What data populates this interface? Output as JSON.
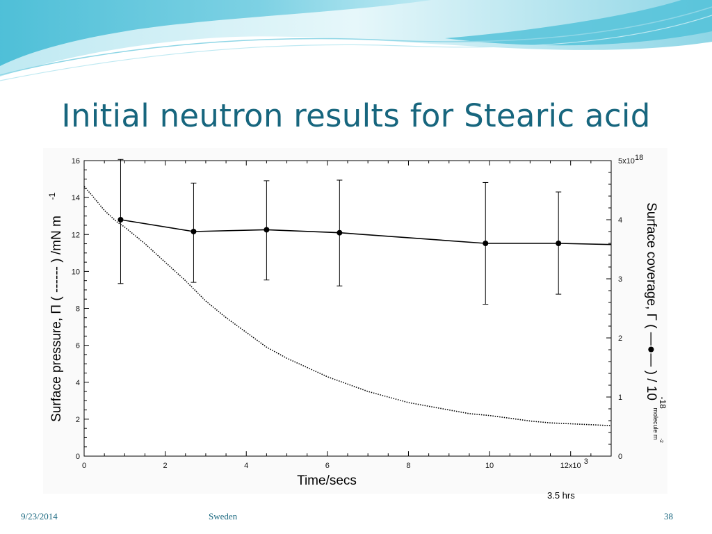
{
  "slide": {
    "title": "Initial neutron results for Stearic acid",
    "footer_date": "9/23/2014",
    "footer_center": "Sweden",
    "page_number": "38",
    "note": "3.5 hrs"
  },
  "colors": {
    "title": "#17667e",
    "banner_light": "#d8f1f6",
    "banner_mid": "#8fd6e6",
    "banner_dark": "#3bb8d3",
    "series": "#000000"
  },
  "chart_data": {
    "type": "line",
    "xlabel": "Time/secs",
    "x_multiplier_label": "12x10",
    "x_multiplier_exp": "3",
    "x_ticks": [
      0,
      2000,
      4000,
      6000,
      8000,
      10000,
      12000
    ],
    "x_tick_labels": [
      "0",
      "2",
      "4",
      "6",
      "8",
      "10",
      ""
    ],
    "xlim": [
      0,
      13000
    ],
    "ylabel_left": "Surface pressure, Π ( ------ ) /mN m",
    "ylabel_left_exp": "-1",
    "ylim_left": [
      0,
      16
    ],
    "y_ticks_left": [
      0,
      2,
      4,
      6,
      8,
      10,
      12,
      14,
      16
    ],
    "y_tick_labels_left": [
      "0",
      "2",
      "4",
      "6",
      "8",
      "10",
      "12",
      "14",
      "16"
    ],
    "ylabel_right": "Surface coverage, Γ  ( —●— ) / 10",
    "ylabel_right_exp": "-18",
    "ylabel_right_unit": "molecule m",
    "ylabel_right_unit_exp": "-2",
    "ylim_right": [
      0,
      5
    ],
    "y_ticks_right": [
      0,
      1,
      2,
      3,
      4,
      5
    ],
    "y_tick_labels_right": [
      "0",
      "1",
      "2",
      "3",
      "4",
      ""
    ],
    "y_right_top_label": "5x10",
    "y_right_top_exp": "18",
    "series": [
      {
        "style": "dotted",
        "axis": "left",
        "x": [
          0,
          200,
          500,
          800,
          1000,
          1500,
          2000,
          2500,
          3000,
          3500,
          4000,
          4500,
          5000,
          5500,
          6000,
          6500,
          7000,
          7500,
          8000,
          8500,
          9000,
          9500,
          10000,
          10500,
          11000,
          11500,
          12000,
          12500,
          13000
        ],
        "y": [
          14.6,
          14.1,
          13.3,
          12.7,
          12.4,
          11.5,
          10.5,
          9.5,
          8.4,
          7.5,
          6.7,
          5.9,
          5.3,
          4.8,
          4.3,
          3.9,
          3.5,
          3.2,
          2.9,
          2.7,
          2.5,
          2.3,
          2.2,
          2.05,
          1.9,
          1.8,
          1.75,
          1.7,
          1.65
        ]
      },
      {
        "style": "solid-markers",
        "axis": "right",
        "x": [
          900,
          2700,
          4500,
          6300,
          9900,
          11700
        ],
        "y": [
          4.0,
          3.8,
          3.83,
          3.78,
          3.6,
          3.6
        ],
        "y_error_low": [
          2.92,
          2.94,
          2.98,
          2.88,
          2.57,
          2.74
        ],
        "y_error_high": [
          5.02,
          4.62,
          4.66,
          4.67,
          4.63,
          4.47
        ],
        "line_end": {
          "x": 13000,
          "y": 3.58
        }
      }
    ]
  }
}
